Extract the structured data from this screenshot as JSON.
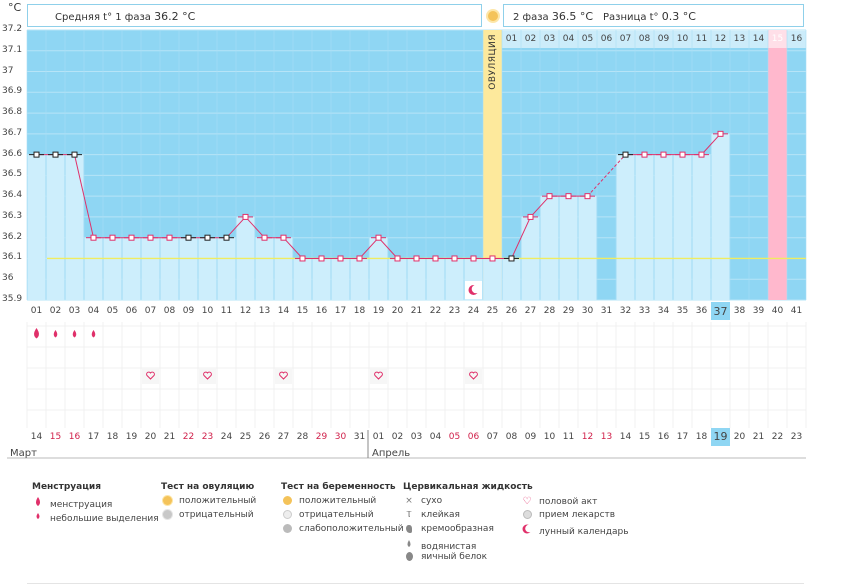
{
  "unit_label": "°C",
  "header": {
    "phase1_label": "Средняя t° 1 фаза",
    "phase1_value": "36.2 °C",
    "phase2_label": "2 фаза",
    "phase2_value": "36.5 °C",
    "diff_label": "Разница t°",
    "diff_value": "0.3 °C"
  },
  "ovulation_label": "ОВУЛЯЦИЯ",
  "colors": {
    "chart_bg": "#8fd6f3",
    "bar_fill": "#cdeefc",
    "ovulation": "#fde99c",
    "highlight_day": "#ffb8cd",
    "line": "#e0306a",
    "coverline": "#f0ec60"
  },
  "chart_data": {
    "type": "line",
    "title": "",
    "ylabel": "°C",
    "ylim": [
      35.9,
      37.2
    ],
    "y_ticks": [
      "37.2",
      "37.1",
      "37",
      "36.9",
      "36.8",
      "36.7",
      "36.6",
      "36.5",
      "36.4",
      "36.3",
      "36.2",
      "36.1",
      "36",
      "35.9"
    ],
    "coverline": 36.1,
    "ovulation_day": 25,
    "x": [
      1,
      2,
      3,
      4,
      5,
      6,
      7,
      8,
      9,
      10,
      11,
      12,
      13,
      14,
      15,
      16,
      17,
      18,
      19,
      20,
      21,
      22,
      23,
      24,
      25,
      26,
      27,
      28,
      29,
      30,
      31,
      32,
      33,
      34,
      35,
      36,
      37,
      38,
      39,
      40,
      41
    ],
    "cycle_days": [
      "01",
      "02",
      "03",
      "04",
      "05",
      "06",
      "07",
      "08",
      "09",
      "10",
      "11",
      "12",
      "13",
      "14",
      "15",
      "16",
      "17",
      "18",
      "19",
      "20",
      "21",
      "22",
      "23",
      "24",
      "25",
      "26",
      "27",
      "28",
      "29",
      "30",
      "31",
      "32",
      "33",
      "34",
      "35",
      "36",
      "37",
      "38",
      "39",
      "40",
      "41"
    ],
    "post_ovulation_days": [
      "01",
      "02",
      "03",
      "04",
      "05",
      "06",
      "07",
      "08",
      "09",
      "10",
      "11",
      "12",
      "13",
      "14",
      "15",
      "16"
    ],
    "dates": [
      "14",
      "15",
      "16",
      "17",
      "18",
      "19",
      "20",
      "21",
      "22",
      "23",
      "24",
      "25",
      "26",
      "27",
      "28",
      "29",
      "30",
      "31",
      "01",
      "02",
      "03",
      "04",
      "05",
      "06",
      "07",
      "08",
      "09",
      "10",
      "11",
      "12",
      "13",
      "14",
      "15",
      "16",
      "17",
      "18",
      "19",
      "20",
      "21",
      "22",
      "23"
    ],
    "red_dates": [
      2,
      3,
      9,
      10,
      16,
      17,
      23,
      24,
      30,
      31
    ],
    "months": [
      "Март",
      "Апрель"
    ],
    "series": [
      {
        "values": [
          36.6,
          36.6,
          36.6,
          36.2,
          36.2,
          36.2,
          36.2,
          36.2,
          36.2,
          36.2,
          36.2,
          36.3,
          36.2,
          36.2,
          36.1,
          36.1,
          36.1,
          36.1,
          36.2,
          36.1,
          36.1,
          36.1,
          36.1,
          36.1,
          36.1,
          36.1,
          36.3,
          36.4,
          36.4,
          36.4,
          null,
          36.6,
          36.6,
          36.6,
          36.6,
          36.6,
          36.7,
          null,
          null,
          null,
          null
        ]
      }
    ],
    "menstruation_days": [
      1,
      2,
      3,
      4
    ],
    "intercourse_days": [
      7,
      10,
      14,
      19,
      24
    ],
    "moon_day": 24,
    "today_cycle_day": 37,
    "highlight_day": 40
  },
  "legend": {
    "groups": [
      {
        "title": "Менструация",
        "items": [
          {
            "label": "менструация",
            "icon": "drop-large-icon"
          },
          {
            "label": "небольшие выделения",
            "icon": "drop-small-icon"
          }
        ]
      },
      {
        "title": "Тест на овуляцию",
        "items": [
          {
            "label": "положительный",
            "icon": "ovulation-positive-icon"
          },
          {
            "label": "отрицательный",
            "icon": "ovulation-negative-icon"
          }
        ]
      },
      {
        "title": "Тест на беременность",
        "items": [
          {
            "label": "положительный",
            "icon": "pregnancy-positive-icon"
          },
          {
            "label": "отрицательный",
            "icon": "pregnancy-negative-icon"
          },
          {
            "label": "слабоположительный",
            "icon": "pregnancy-weak-icon"
          }
        ]
      },
      {
        "title": "Цервикальная жидкость",
        "items": [
          {
            "label": "сухо",
            "icon": "dry-icon"
          },
          {
            "label": "клейкая",
            "icon": "sticky-icon"
          },
          {
            "label": "кремообразная",
            "icon": "creamy-icon"
          },
          {
            "label": "водянистая",
            "icon": "watery-icon"
          },
          {
            "label": "яичный белок",
            "icon": "egg-white-icon"
          }
        ]
      },
      {
        "title": "",
        "items": [
          {
            "label": "половой акт",
            "icon": "heart-icon"
          },
          {
            "label": "прием лекарств",
            "icon": "pill-icon"
          },
          {
            "label": "лунный календарь",
            "icon": "moon-icon"
          }
        ]
      }
    ]
  }
}
